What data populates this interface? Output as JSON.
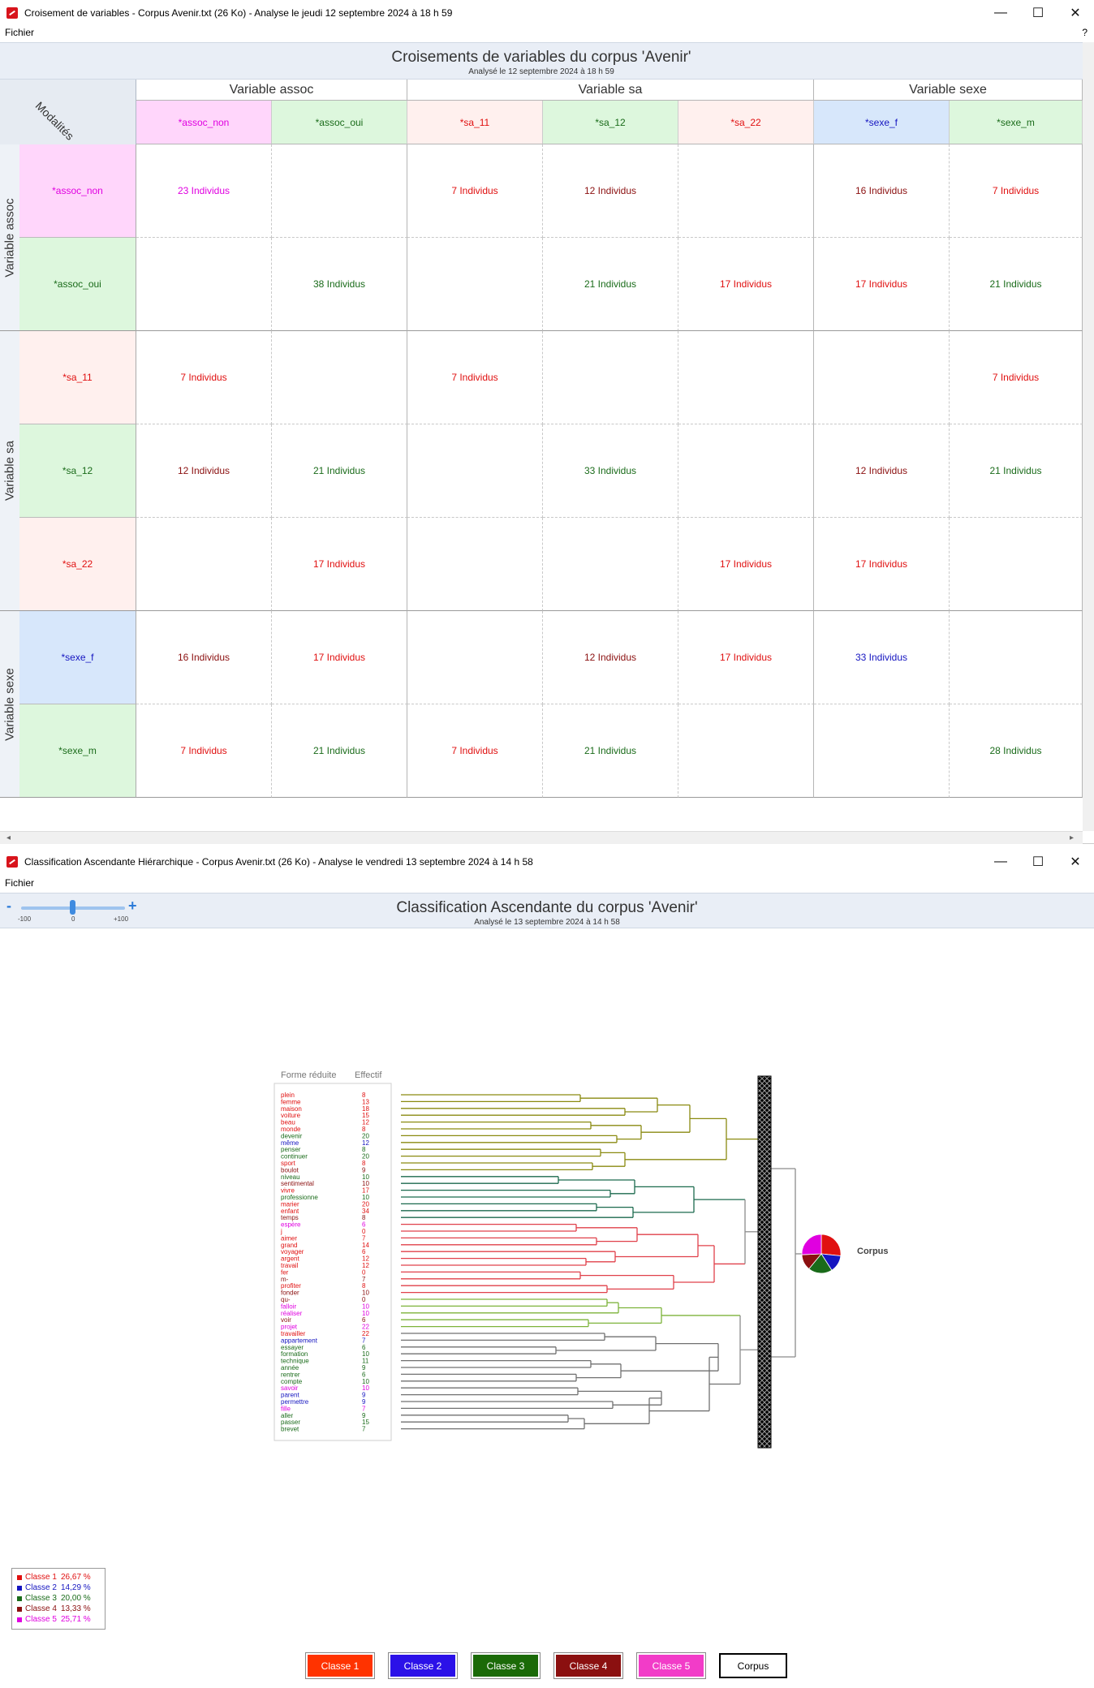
{
  "window1": {
    "title": "Croisement de variables - Corpus Avenir.txt (26 Ko) - Analyse le jeudi 12 septembre 2024 à 18 h 59",
    "menu": "Fichier",
    "help": "?",
    "controls": {
      "minimize": "—",
      "maximize": "☐",
      "close": "✕"
    },
    "header_title": "Croisements de variables du corpus 'Avenir'",
    "header_subtitle": "Analysé le 12 septembre 2024 à 18 h 59",
    "corner_label": "Modalités",
    "column_groups": [
      "Variable  assoc",
      "Variable            sa",
      "Variable  sexe"
    ],
    "columns": [
      {
        "label": "*assoc_non",
        "color": "#e000e0",
        "bg": "#ffd6fb"
      },
      {
        "label": "*assoc_oui",
        "color": "#1a6b1a",
        "bg": "#ddf7dd"
      },
      {
        "label": "*sa_11",
        "color": "#e01010",
        "bg": "#fff0ee"
      },
      {
        "label": "*sa_12",
        "color": "#1a6b1a",
        "bg": "#ddf7dd"
      },
      {
        "label": "*sa_22",
        "color": "#e01010",
        "bg": "#fff0ee"
      },
      {
        "label": "*sexe_f",
        "color": "#1515c0",
        "bg": "#d7e7fb"
      },
      {
        "label": "*sexe_m",
        "color": "#1a6b1a",
        "bg": "#ddf7dd"
      }
    ],
    "row_groups": [
      "Variable  assoc",
      "Variable sa",
      "Variable  sexe"
    ],
    "rows": [
      {
        "label": "*assoc_non",
        "color": "#e000e0",
        "bg": "#ffd6fb"
      },
      {
        "label": "*assoc_oui",
        "color": "#1a6b1a",
        "bg": "#ddf7dd"
      },
      {
        "label": "*sa_11",
        "color": "#e01010",
        "bg": "#fff0ee"
      },
      {
        "label": "*sa_12",
        "color": "#1a6b1a",
        "bg": "#ddf7dd"
      },
      {
        "label": "*sa_22",
        "color": "#e01010",
        "bg": "#fff0ee"
      },
      {
        "label": "*sexe_f",
        "color": "#1515c0",
        "bg": "#d7e7fb"
      },
      {
        "label": "*sexe_m",
        "color": "#1a6b1a",
        "bg": "#ddf7dd"
      }
    ],
    "cells": [
      [
        {
          "t": "23 Individus",
          "c": "#e000e0"
        },
        {
          "t": "",
          "c": ""
        },
        {
          "t": "7 Individus",
          "c": "#e01010"
        },
        {
          "t": "12 Individus",
          "c": "#8b1010"
        },
        {
          "t": "",
          "c": ""
        },
        {
          "t": "16 Individus",
          "c": "#8b1010"
        },
        {
          "t": "7 Individus",
          "c": "#e01010"
        }
      ],
      [
        {
          "t": "",
          "c": ""
        },
        {
          "t": "38 Individus",
          "c": "#1a6b1a"
        },
        {
          "t": "",
          "c": ""
        },
        {
          "t": "21 Individus",
          "c": "#1a6b1a"
        },
        {
          "t": "17 Individus",
          "c": "#e01010"
        },
        {
          "t": "17 Individus",
          "c": "#e01010"
        },
        {
          "t": "21 Individus",
          "c": "#1a6b1a"
        }
      ],
      [
        {
          "t": "7 Individus",
          "c": "#e01010"
        },
        {
          "t": "",
          "c": ""
        },
        {
          "t": "7 Individus",
          "c": "#e01010"
        },
        {
          "t": "",
          "c": ""
        },
        {
          "t": "",
          "c": ""
        },
        {
          "t": "",
          "c": ""
        },
        {
          "t": "7 Individus",
          "c": "#e01010"
        }
      ],
      [
        {
          "t": "12 Individus",
          "c": "#8b1010"
        },
        {
          "t": "21 Individus",
          "c": "#1a6b1a"
        },
        {
          "t": "",
          "c": ""
        },
        {
          "t": "33 Individus",
          "c": "#1a6b1a"
        },
        {
          "t": "",
          "c": ""
        },
        {
          "t": "12 Individus",
          "c": "#8b1010"
        },
        {
          "t": "21 Individus",
          "c": "#1a6b1a"
        }
      ],
      [
        {
          "t": "",
          "c": ""
        },
        {
          "t": "17 Individus",
          "c": "#e01010"
        },
        {
          "t": "",
          "c": ""
        },
        {
          "t": "",
          "c": ""
        },
        {
          "t": "17 Individus",
          "c": "#e01010"
        },
        {
          "t": "17 Individus",
          "c": "#e01010"
        },
        {
          "t": "",
          "c": ""
        }
      ],
      [
        {
          "t": "16 Individus",
          "c": "#8b1010"
        },
        {
          "t": "17 Individus",
          "c": "#e01010"
        },
        {
          "t": "",
          "c": ""
        },
        {
          "t": "12 Individus",
          "c": "#8b1010"
        },
        {
          "t": "17 Individus",
          "c": "#e01010"
        },
        {
          "t": "33 Individus",
          "c": "#1515c0"
        },
        {
          "t": "",
          "c": ""
        }
      ],
      [
        {
          "t": "7 Individus",
          "c": "#e01010"
        },
        {
          "t": "21 Individus",
          "c": "#1a6b1a"
        },
        {
          "t": "7 Individus",
          "c": "#e01010"
        },
        {
          "t": "21 Individus",
          "c": "#1a6b1a"
        },
        {
          "t": "",
          "c": ""
        },
        {
          "t": "",
          "c": ""
        },
        {
          "t": "28 Individus",
          "c": "#1a6b1a"
        }
      ]
    ]
  },
  "window2": {
    "title": "Classification Ascendante Hiérarchique - Corpus Avenir.txt (26 Ko) - Analyse le vendredi 13 septembre 2024 à 14 h 58",
    "menu": "Fichier",
    "controls": {
      "minimize": "—",
      "maximize": "☐",
      "close": "✕"
    },
    "header_title": "Classification Ascendante du corpus 'Avenir'",
    "header_subtitle": "Analysé le 13 septembre 2024 à 14 h 58",
    "zoom": {
      "minus": "-",
      "plus": "+",
      "min_label": "-100",
      "mid_label": "0",
      "max_label": "+100",
      "value": 0
    },
    "list_headers": {
      "form": "Forme réduite",
      "count": "Effectif"
    },
    "words": [
      {
        "w": "plein",
        "n": "8",
        "c": "#e01010"
      },
      {
        "w": "femme",
        "n": "13",
        "c": "#e01010"
      },
      {
        "w": "maison",
        "n": "18",
        "c": "#e01010"
      },
      {
        "w": "voiture",
        "n": "15",
        "c": "#e01010"
      },
      {
        "w": "beau",
        "n": "12",
        "c": "#e01010"
      },
      {
        "w": "monde",
        "n": "8",
        "c": "#e01010"
      },
      {
        "w": "devenir",
        "n": "20",
        "c": "#1a6b1a"
      },
      {
        "w": "même",
        "n": "12",
        "c": "#1515c0"
      },
      {
        "w": "penser",
        "n": "8",
        "c": "#1a6b1a"
      },
      {
        "w": "continuer",
        "n": "20",
        "c": "#1a6b1a"
      },
      {
        "w": "sport",
        "n": "8",
        "c": "#e01010"
      },
      {
        "w": "boulot",
        "n": "9",
        "c": "#8b1010"
      },
      {
        "w": "niveau",
        "n": "10",
        "c": "#1a6b1a"
      },
      {
        "w": "sentimental",
        "n": "10",
        "c": "#8b1010"
      },
      {
        "w": "vivre",
        "n": "17",
        "c": "#e01010"
      },
      {
        "w": "professionne",
        "n": "10",
        "c": "#1a6b1a"
      },
      {
        "w": "marier",
        "n": "20",
        "c": "#e01010"
      },
      {
        "w": "enfant",
        "n": "34",
        "c": "#e01010"
      },
      {
        "w": "temps",
        "n": "8",
        "c": "#8b1010"
      },
      {
        "w": "espère",
        "n": "6",
        "c": "#e000e0"
      },
      {
        "w": "j",
        "n": "0",
        "c": "#e01010"
      },
      {
        "w": "aimer",
        "n": "7",
        "c": "#e01010"
      },
      {
        "w": "grand",
        "n": "14",
        "c": "#e01010"
      },
      {
        "w": "voyager",
        "n": "6",
        "c": "#e01010"
      },
      {
        "w": "argent",
        "n": "12",
        "c": "#e01010"
      },
      {
        "w": "travail",
        "n": "12",
        "c": "#e01010"
      },
      {
        "w": "fer",
        "n": "0",
        "c": "#e01010"
      },
      {
        "w": "m-",
        "n": "7",
        "c": "#8b1010"
      },
      {
        "w": "profiter",
        "n": "8",
        "c": "#e01010"
      },
      {
        "w": "fonder",
        "n": "10",
        "c": "#8b1010"
      },
      {
        "w": "qu-",
        "n": "0",
        "c": "#8b1010"
      },
      {
        "w": "falloir",
        "n": "10",
        "c": "#e000e0"
      },
      {
        "w": "réaliser",
        "n": "10",
        "c": "#e000e0"
      },
      {
        "w": "voir",
        "n": "6",
        "c": "#8b1010"
      },
      {
        "w": "projet",
        "n": "22",
        "c": "#e000e0"
      },
      {
        "w": "travailler",
        "n": "22",
        "c": "#e01010"
      },
      {
        "w": "appartement",
        "n": "7",
        "c": "#1515c0"
      },
      {
        "w": "essayer",
        "n": "6",
        "c": "#1a6b1a"
      },
      {
        "w": "formation",
        "n": "10",
        "c": "#1a6b1a"
      },
      {
        "w": "technique",
        "n": "11",
        "c": "#1a6b1a"
      },
      {
        "w": "année",
        "n": "9",
        "c": "#1a6b1a"
      },
      {
        "w": "rentrer",
        "n": "6",
        "c": "#1a6b1a"
      },
      {
        "w": "compte",
        "n": "10",
        "c": "#1a6b1a"
      },
      {
        "w": "savoir",
        "n": "10",
        "c": "#e000e0"
      },
      {
        "w": "parent",
        "n": "9",
        "c": "#1515c0"
      },
      {
        "w": "permettre",
        "n": "9",
        "c": "#1515c0"
      },
      {
        "w": "fille",
        "n": "7",
        "c": "#e000e0"
      },
      {
        "w": "aller",
        "n": "9",
        "c": "#1a6b1a"
      },
      {
        "w": "passer",
        "n": "15",
        "c": "#1a6b1a"
      },
      {
        "w": "brevet",
        "n": "7",
        "c": "#1a6b1a"
      }
    ],
    "tree_colors": [
      "#8a8a10",
      "#1b6a4e",
      "#e0404a",
      "#7db33a",
      "#707070"
    ],
    "corpus_label": "Corpus",
    "pie_colors": [
      "#e01010",
      "#1515c0",
      "#1a6b1a",
      "#8b1010",
      "#e000e0"
    ],
    "legend": [
      {
        "name": "Classe  1",
        "val": "26,67 %",
        "color": "#e01010"
      },
      {
        "name": "Classe  2",
        "val": "14,29 %",
        "color": "#1515c0"
      },
      {
        "name": "Classe  3",
        "val": "20,00 %",
        "color": "#1a6b1a"
      },
      {
        "name": "Classe  4",
        "val": "13,33 %",
        "color": "#8b1010"
      },
      {
        "name": "Classe  5",
        "val": "25,71 %",
        "color": "#e000e0"
      }
    ],
    "buttons": [
      {
        "label": "Classe 1",
        "bg": "#ff3300"
      },
      {
        "label": "Classe 2",
        "bg": "#2b11e8"
      },
      {
        "label": "Classe 3",
        "bg": "#1b6a08"
      },
      {
        "label": "Classe 4",
        "bg": "#8b1010"
      },
      {
        "label": "Classe 5",
        "bg": "#f23cc8"
      },
      {
        "label": "Corpus",
        "bg": "#ffffff"
      }
    ]
  }
}
